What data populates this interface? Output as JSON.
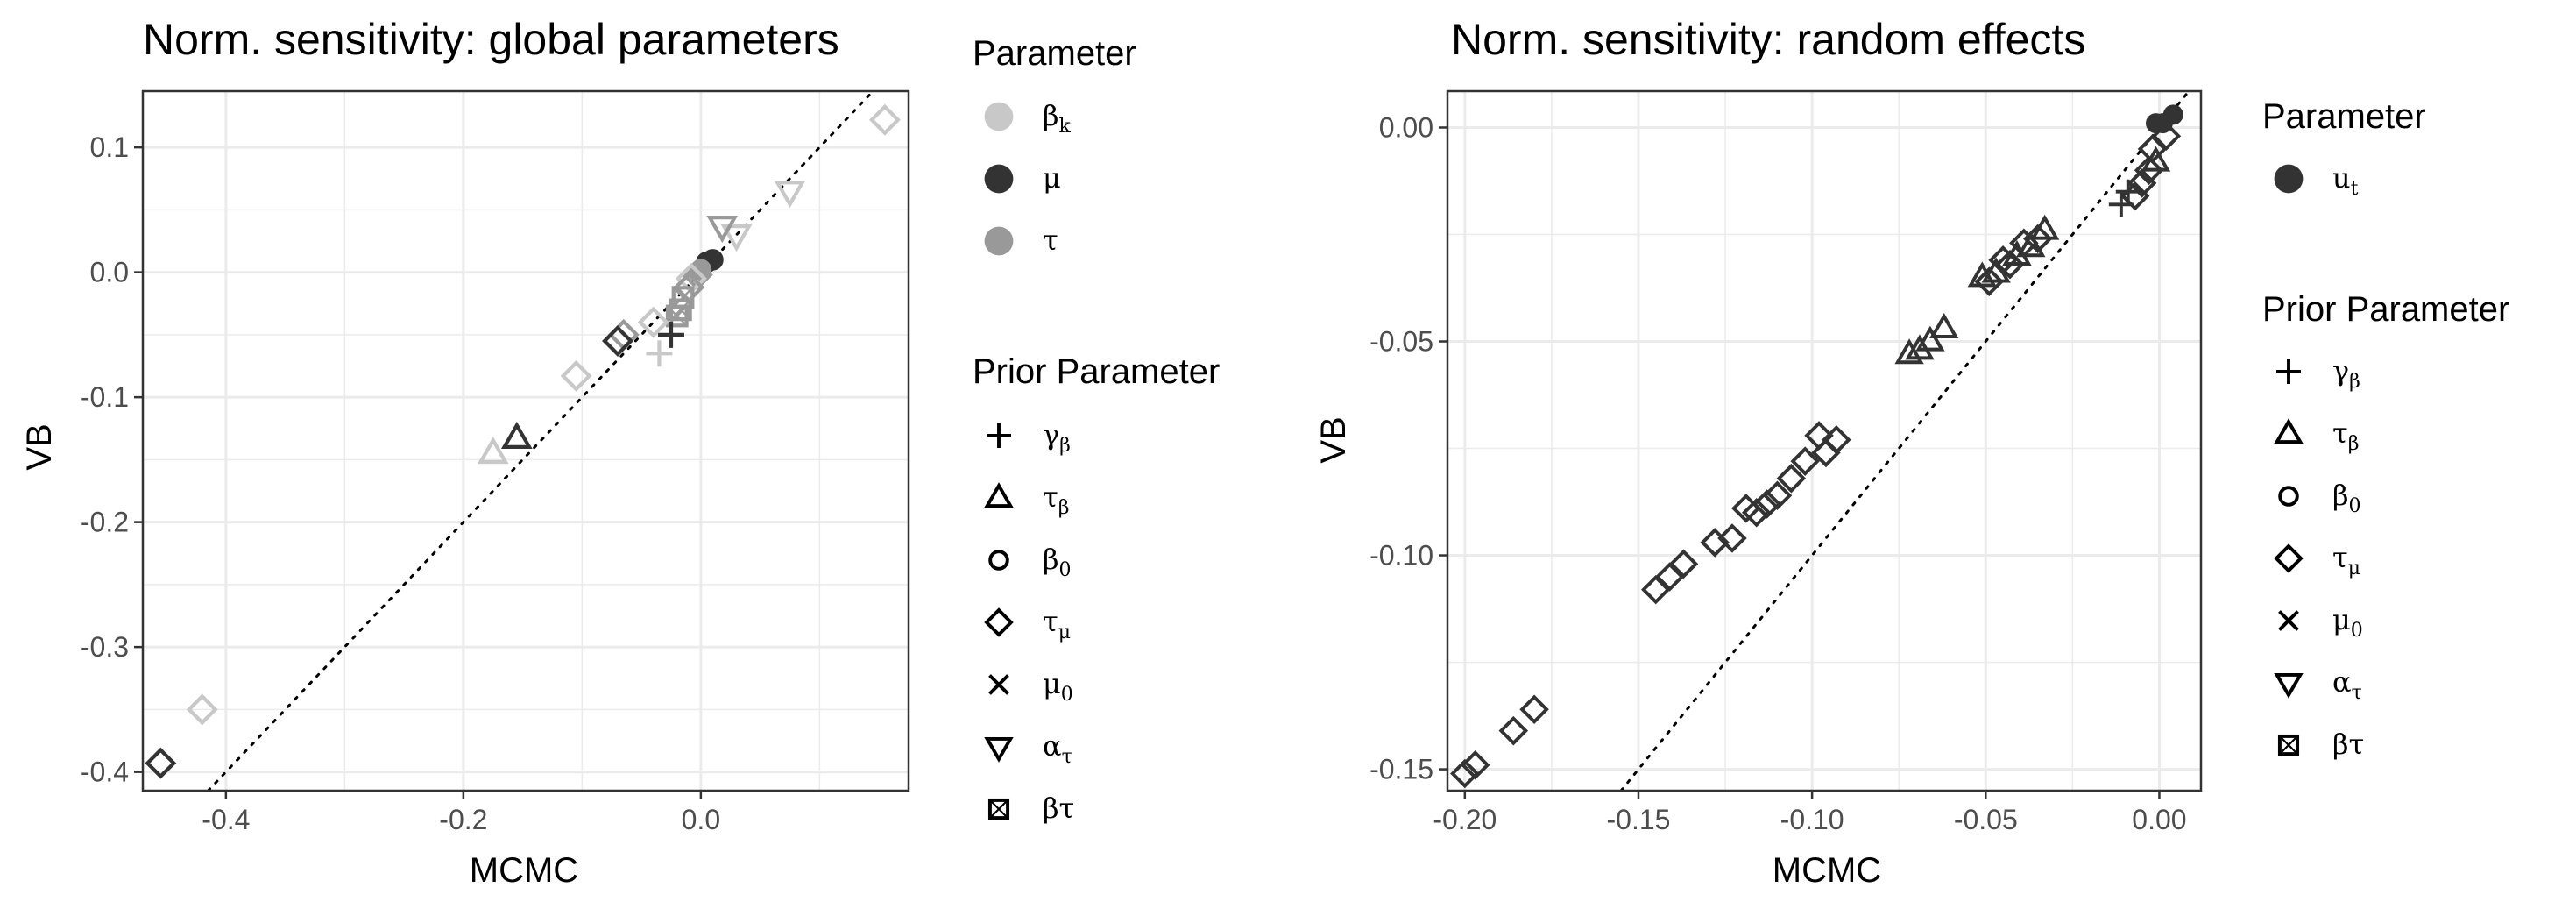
{
  "chart_data": [
    {
      "type": "scatter",
      "title": "Norm. sensitivity: global parameters",
      "xlabel": "MCMC",
      "ylabel": "VB",
      "xlim": [
        -0.47,
        0.175
      ],
      "ylim": [
        -0.415,
        0.145
      ],
      "xticks": [
        -0.4,
        -0.2,
        0.0
      ],
      "xtick_labels": [
        "-0.4",
        "-0.2",
        "0.0"
      ],
      "yticks": [
        0.1,
        0.0,
        -0.1,
        -0.2,
        -0.3,
        -0.4
      ],
      "ytick_labels": [
        "0.1",
        "0.0",
        "-0.1",
        "-0.2",
        "-0.3",
        "-0.4"
      ],
      "reference_line": "y = x (dotted)",
      "grid": true,
      "points": [
        {
          "x": 0.155,
          "y": 0.122,
          "param": "beta_k",
          "shape": "diamond"
        },
        {
          "x": 0.075,
          "y": 0.065,
          "param": "beta_k",
          "shape": "triangle_down"
        },
        {
          "x": 0.03,
          "y": 0.03,
          "param": "beta_k",
          "shape": "triangle_down"
        },
        {
          "x": 0.018,
          "y": 0.037,
          "param": "tau",
          "shape": "triangle_down"
        },
        {
          "x": 0.01,
          "y": 0.01,
          "param": "mu",
          "shape": "circle"
        },
        {
          "x": 0.005,
          "y": 0.008,
          "param": "mu",
          "shape": "circle"
        },
        {
          "x": 0.0,
          "y": 0.002,
          "param": "tau",
          "shape": "circle"
        },
        {
          "x": -0.003,
          "y": -0.002,
          "param": "tau",
          "shape": "diamond"
        },
        {
          "x": -0.008,
          "y": -0.005,
          "param": "beta_k",
          "shape": "diamond"
        },
        {
          "x": -0.01,
          "y": -0.012,
          "param": "tau",
          "shape": "diamond"
        },
        {
          "x": -0.015,
          "y": -0.02,
          "param": "tau",
          "shape": "beta_tau"
        },
        {
          "x": -0.017,
          "y": -0.03,
          "param": "tau",
          "shape": "beta_tau"
        },
        {
          "x": -0.02,
          "y": -0.035,
          "param": "tau",
          "shape": "beta_tau"
        },
        {
          "x": -0.025,
          "y": -0.05,
          "param": "mu",
          "shape": "plus"
        },
        {
          "x": -0.035,
          "y": -0.065,
          "param": "beta_k",
          "shape": "plus"
        },
        {
          "x": -0.04,
          "y": -0.04,
          "param": "beta_k",
          "shape": "diamond"
        },
        {
          "x": -0.065,
          "y": -0.05,
          "param": "tau",
          "shape": "diamond"
        },
        {
          "x": -0.07,
          "y": -0.055,
          "param": "mu",
          "shape": "diamond"
        },
        {
          "x": -0.105,
          "y": -0.083,
          "param": "beta_k",
          "shape": "diamond"
        },
        {
          "x": -0.155,
          "y": -0.133,
          "param": "mu",
          "shape": "triangle_up"
        },
        {
          "x": -0.175,
          "y": -0.145,
          "param": "beta_k",
          "shape": "triangle_up"
        },
        {
          "x": -0.42,
          "y": -0.35,
          "param": "beta_k",
          "shape": "diamond"
        },
        {
          "x": -0.455,
          "y": -0.393,
          "param": "mu",
          "shape": "diamond"
        }
      ]
    },
    {
      "type": "scatter",
      "title": "Norm. sensitivity: random effects",
      "xlabel": "MCMC",
      "ylabel": "VB",
      "xlim": [
        -0.205,
        0.012
      ],
      "ylim": [
        -0.155,
        0.0085
      ],
      "xticks": [
        -0.2,
        -0.15,
        -0.1,
        -0.05,
        0.0
      ],
      "xtick_labels": [
        "-0.20",
        "-0.15",
        "-0.10",
        "-0.05",
        "0.00"
      ],
      "yticks": [
        0.0,
        -0.05,
        -0.1,
        -0.15
      ],
      "ytick_labels": [
        "0.00",
        "-0.05",
        "-0.10",
        "-0.15"
      ],
      "reference_line": "y = x (dotted)",
      "grid": true,
      "points": [
        {
          "x": 0.004,
          "y": 0.003,
          "param": "u_t",
          "shape": "circle"
        },
        {
          "x": 0.001,
          "y": 0.001,
          "param": "u_t",
          "shape": "circle"
        },
        {
          "x": -0.001,
          "y": 0.001,
          "param": "u_t",
          "shape": "circle"
        },
        {
          "x": 0.002,
          "y": -0.002,
          "param": "u_t",
          "shape": "diamond"
        },
        {
          "x": -0.002,
          "y": -0.005,
          "param": "u_t",
          "shape": "diamond"
        },
        {
          "x": -0.001,
          "y": -0.008,
          "param": "u_t",
          "shape": "triangle_up"
        },
        {
          "x": -0.003,
          "y": -0.01,
          "param": "u_t",
          "shape": "diamond"
        },
        {
          "x": -0.005,
          "y": -0.013,
          "param": "u_t",
          "shape": "diamond"
        },
        {
          "x": -0.007,
          "y": -0.016,
          "param": "u_t",
          "shape": "diamond"
        },
        {
          "x": -0.011,
          "y": -0.018,
          "param": "u_t",
          "shape": "plus"
        },
        {
          "x": -0.009,
          "y": -0.015,
          "param": "u_t",
          "shape": "plus"
        },
        {
          "x": -0.033,
          "y": -0.024,
          "param": "u_t",
          "shape": "triangle_up"
        },
        {
          "x": -0.035,
          "y": -0.026,
          "param": "u_t",
          "shape": "diamond"
        },
        {
          "x": -0.037,
          "y": -0.028,
          "param": "u_t",
          "shape": "triangle_up"
        },
        {
          "x": -0.039,
          "y": -0.027,
          "param": "u_t",
          "shape": "diamond"
        },
        {
          "x": -0.041,
          "y": -0.03,
          "param": "u_t",
          "shape": "triangle_up"
        },
        {
          "x": -0.043,
          "y": -0.032,
          "param": "u_t",
          "shape": "diamond"
        },
        {
          "x": -0.045,
          "y": -0.031,
          "param": "u_t",
          "shape": "diamond"
        },
        {
          "x": -0.047,
          "y": -0.034,
          "param": "u_t",
          "shape": "triangle_up"
        },
        {
          "x": -0.049,
          "y": -0.036,
          "param": "u_t",
          "shape": "diamond"
        },
        {
          "x": -0.051,
          "y": -0.035,
          "param": "u_t",
          "shape": "triangle_up"
        },
        {
          "x": -0.062,
          "y": -0.047,
          "param": "u_t",
          "shape": "triangle_up"
        },
        {
          "x": -0.066,
          "y": -0.05,
          "param": "u_t",
          "shape": "triangle_up"
        },
        {
          "x": -0.069,
          "y": -0.052,
          "param": "u_t",
          "shape": "triangle_up"
        },
        {
          "x": -0.072,
          "y": -0.053,
          "param": "u_t",
          "shape": "triangle_up"
        },
        {
          "x": -0.093,
          "y": -0.073,
          "param": "u_t",
          "shape": "diamond"
        },
        {
          "x": -0.096,
          "y": -0.076,
          "param": "u_t",
          "shape": "diamond"
        },
        {
          "x": -0.098,
          "y": -0.072,
          "param": "u_t",
          "shape": "diamond"
        },
        {
          "x": -0.102,
          "y": -0.078,
          "param": "u_t",
          "shape": "diamond"
        },
        {
          "x": -0.106,
          "y": -0.082,
          "param": "u_t",
          "shape": "diamond"
        },
        {
          "x": -0.11,
          "y": -0.086,
          "param": "u_t",
          "shape": "diamond"
        },
        {
          "x": -0.113,
          "y": -0.088,
          "param": "u_t",
          "shape": "diamond"
        },
        {
          "x": -0.116,
          "y": -0.09,
          "param": "u_t",
          "shape": "diamond"
        },
        {
          "x": -0.119,
          "y": -0.089,
          "param": "u_t",
          "shape": "diamond"
        },
        {
          "x": -0.123,
          "y": -0.096,
          "param": "u_t",
          "shape": "diamond"
        },
        {
          "x": -0.128,
          "y": -0.097,
          "param": "u_t",
          "shape": "diamond"
        },
        {
          "x": -0.137,
          "y": -0.102,
          "param": "u_t",
          "shape": "diamond"
        },
        {
          "x": -0.141,
          "y": -0.105,
          "param": "u_t",
          "shape": "diamond"
        },
        {
          "x": -0.145,
          "y": -0.108,
          "param": "u_t",
          "shape": "diamond"
        },
        {
          "x": -0.18,
          "y": -0.136,
          "param": "u_t",
          "shape": "diamond"
        },
        {
          "x": -0.186,
          "y": -0.141,
          "param": "u_t",
          "shape": "diamond"
        },
        {
          "x": -0.197,
          "y": -0.149,
          "param": "u_t",
          "shape": "diamond"
        },
        {
          "x": -0.2,
          "y": -0.151,
          "param": "u_t",
          "shape": "diamond"
        }
      ]
    }
  ],
  "legends": {
    "left_parameter": {
      "title": "Parameter",
      "items": [
        {
          "key": "beta_k",
          "label": "β",
          "sub": "k",
          "color": "#c8c8c8"
        },
        {
          "key": "mu",
          "label": "μ",
          "sub": "",
          "color": "#333333"
        },
        {
          "key": "tau",
          "label": "τ",
          "sub": "",
          "color": "#999999"
        }
      ]
    },
    "left_prior": {
      "title": "Prior Parameter",
      "items": [
        {
          "shape": "plus",
          "label": "γ",
          "sub": "β"
        },
        {
          "shape": "triangle_up",
          "label": "τ",
          "sub": "β"
        },
        {
          "shape": "circle",
          "label": "β",
          "sub": "0"
        },
        {
          "shape": "diamond",
          "label": "τ",
          "sub": "μ"
        },
        {
          "shape": "cross",
          "label": "μ",
          "sub": "0"
        },
        {
          "shape": "triangle_down",
          "label": "α",
          "sub": "τ"
        },
        {
          "shape": "beta_tau",
          "label": "βτ",
          "sub": ""
        }
      ]
    },
    "right_parameter": {
      "title": "Parameter",
      "items": [
        {
          "key": "u_t",
          "label": "u",
          "sub": "t",
          "color": "#333333"
        }
      ]
    },
    "right_prior": {
      "title": "Prior Parameter",
      "items": [
        {
          "shape": "plus",
          "label": "γ",
          "sub": "β"
        },
        {
          "shape": "triangle_up",
          "label": "τ",
          "sub": "β"
        },
        {
          "shape": "circle",
          "label": "β",
          "sub": "0"
        },
        {
          "shape": "diamond",
          "label": "τ",
          "sub": "μ"
        },
        {
          "shape": "cross",
          "label": "μ",
          "sub": "0"
        },
        {
          "shape": "triangle_down",
          "label": "α",
          "sub": "τ"
        },
        {
          "shape": "beta_tau",
          "label": "βτ",
          "sub": ""
        }
      ]
    }
  },
  "colors": {
    "beta_k": "#c8c8c8",
    "mu": "#333333",
    "tau": "#999999",
    "u_t": "#333333",
    "grid": "#ebebeb",
    "panel_border": "#333333"
  }
}
